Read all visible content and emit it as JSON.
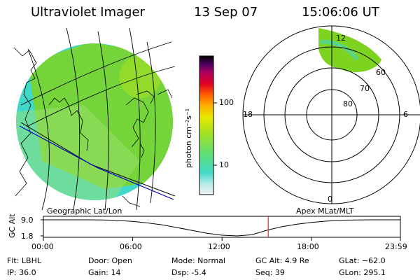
{
  "header": {
    "instrument": "Ultraviolet Imager",
    "date": "13 Sep 07",
    "time": "15:06:06 UT"
  },
  "colorbar": {
    "label": "photon cm⁻²s⁻¹",
    "ticks": [
      "100",
      "10"
    ],
    "scale": "log"
  },
  "polar_plot": {
    "mlt_labels": [
      "12",
      "18",
      "6",
      "0"
    ],
    "mlat_labels": [
      "60",
      "70",
      "80"
    ]
  },
  "timeline": {
    "left_title": "Geographic Lat/Lon",
    "right_title": "Apex MLat/MLT",
    "ylabel": "GC Alt",
    "yticks": [
      "9.0",
      "1.8"
    ],
    "xticks": [
      "00:00",
      "06:00",
      "12:00",
      "18:00",
      "23:59"
    ],
    "current_time_hours": 15.1
  },
  "chart_data": {
    "type": "line",
    "title": "",
    "xlabel": "",
    "ylabel": "GC Alt",
    "x": [
      0,
      1,
      2,
      3,
      4,
      5,
      6,
      7,
      8,
      9,
      10,
      11,
      12,
      13,
      14,
      15,
      16,
      17,
      18,
      19,
      20,
      21,
      22,
      23,
      23.98
    ],
    "series": [
      {
        "values": [
          9.0,
          9.0,
          9.0,
          9.0,
          8.9,
          8.7,
          8.3,
          7.6,
          6.7,
          5.5,
          4.2,
          3.0,
          2.1,
          1.8,
          2.3,
          4.3,
          5.9,
          7.0,
          7.8,
          8.4,
          8.8,
          8.95,
          9.0,
          9.0,
          9.0
        ]
      }
    ],
    "ylim": [
      1.8,
      9.0
    ],
    "xlim": [
      0,
      23.98
    ],
    "marker_time": 15.1
  },
  "status": {
    "flt": "Flt: LBHL",
    "ip": "IP: 36.0",
    "door": "Door: Open",
    "gain": "Gain: 14",
    "mode": "Mode: Normal",
    "dsp": "Dsp:    -5.4",
    "gc_alt": "GC Alt: 4.9 Re",
    "seq": "Seq: 39",
    "glat": "GLat: −62.0",
    "glon": "GLon: 295.1"
  },
  "colors": {
    "aurora_green": "#7ed321",
    "background_cyan": "#40d8c8",
    "marker_red": "#e00000",
    "orbit_blue": "#0000cc"
  }
}
